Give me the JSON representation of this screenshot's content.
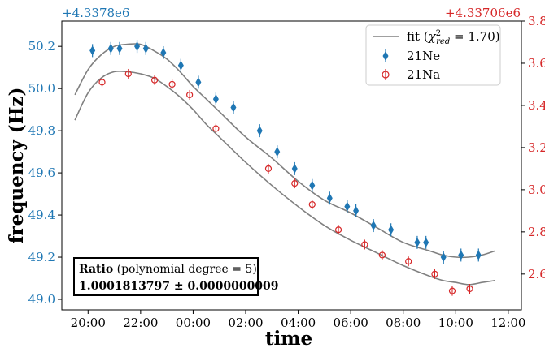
{
  "chart_data": {
    "type": "scatter",
    "xlabel": "time",
    "ylabel": "frequency (Hz)",
    "x_ticks": [
      "20:00",
      "22:00",
      "00:00",
      "02:00",
      "04:00",
      "06:00",
      "08:00",
      "10:00",
      "12:00"
    ],
    "x_range": [
      "19:00",
      "12:30"
    ],
    "left_axis": {
      "offset_label": "+4.3378e6",
      "range": [
        48.95,
        50.32
      ],
      "ticks": [
        "49.0",
        "49.2",
        "49.4",
        "49.6",
        "49.8",
        "50.0",
        "50.2"
      ],
      "color": "#1f77b4"
    },
    "right_axis": {
      "offset_label": "+4.33706e6",
      "range": [
        2.43,
        3.8
      ],
      "ticks": [
        "2.6",
        "2.8",
        "3.0",
        "3.2",
        "3.4",
        "3.6",
        "3.8"
      ],
      "color": "#d62728"
    },
    "legend": {
      "position": "top-right",
      "fit_label_prefix": "fit (",
      "fit_label_chi": "χ",
      "fit_label_sup": "2",
      "fit_label_sub": "red",
      "fit_label_value": " = 1.70)",
      "ne_label": "21Ne",
      "na_label": "21Na"
    },
    "series": [
      {
        "name": "21Ne",
        "axis": "left",
        "marker": "diamond",
        "color": "#1f77b4",
        "x": [
          "20:10",
          "20:52",
          "21:12",
          "21:52",
          "22:12",
          "22:52",
          "23:32",
          "00:12",
          "00:52",
          "01:32",
          "02:32",
          "03:12",
          "03:52",
          "04:32",
          "05:12",
          "05:52",
          "06:12",
          "06:52",
          "07:32",
          "08:32",
          "08:52",
          "09:32",
          "10:12",
          "10:52"
        ],
        "y": [
          50.18,
          50.19,
          50.19,
          50.2,
          50.19,
          50.17,
          50.11,
          50.03,
          49.95,
          49.91,
          49.8,
          49.7,
          49.62,
          49.54,
          49.48,
          49.44,
          49.42,
          49.35,
          49.33,
          49.27,
          49.27,
          49.2,
          49.21,
          49.21
        ]
      },
      {
        "name": "21Na",
        "axis": "right",
        "marker": "circle",
        "color": "#d62728",
        "x": [
          "20:32",
          "21:32",
          "22:32",
          "23:12",
          "23:52",
          "00:52",
          "02:52",
          "03:52",
          "04:32",
          "05:32",
          "06:32",
          "07:12",
          "08:12",
          "09:12",
          "09:52",
          "10:32"
        ],
        "y": [
          3.51,
          3.55,
          3.52,
          3.5,
          3.45,
          3.29,
          3.1,
          3.03,
          2.93,
          2.81,
          2.74,
          2.69,
          2.66,
          2.6,
          2.52,
          2.53
        ]
      },
      {
        "name": "fit",
        "axis": "left",
        "line": true,
        "color": "#808080",
        "x": [
          "19:30",
          "20:00",
          "20:30",
          "21:00",
          "21:30",
          "22:00",
          "22:30",
          "23:00",
          "23:30",
          "00:00",
          "00:30",
          "01:00",
          "02:00",
          "03:00",
          "04:00",
          "05:00",
          "06:00",
          "07:00",
          "08:00",
          "09:00",
          "09:30",
          "10:00",
          "10:30",
          "11:00",
          "11:30"
        ],
        "y": [
          49.97,
          50.09,
          50.16,
          50.2,
          50.21,
          50.21,
          50.18,
          50.14,
          50.08,
          50.01,
          49.95,
          49.89,
          49.77,
          49.67,
          49.56,
          49.47,
          49.41,
          49.34,
          49.27,
          49.23,
          49.21,
          49.2,
          49.2,
          49.21,
          49.23
        ]
      },
      {
        "axis": "right",
        "line": true,
        "color": "#808080",
        "x": [
          "19:30",
          "20:00",
          "20:30",
          "21:00",
          "21:30",
          "22:00",
          "22:30",
          "23:00",
          "23:30",
          "00:00",
          "00:30",
          "01:00",
          "02:00",
          "03:00",
          "04:00",
          "05:00",
          "06:00",
          "07:00",
          "08:00",
          "09:00",
          "09:30",
          "10:00",
          "10:30",
          "11:00",
          "11:30"
        ],
        "y": [
          3.33,
          3.46,
          3.53,
          3.56,
          3.56,
          3.55,
          3.53,
          3.49,
          3.44,
          3.38,
          3.31,
          3.25,
          3.13,
          3.02,
          2.92,
          2.83,
          2.76,
          2.7,
          2.64,
          2.59,
          2.57,
          2.56,
          2.55,
          2.56,
          2.57
        ]
      }
    ],
    "annotation": {
      "bold_label": "Ratio",
      "rest_label": " (polynomial degree = 5):",
      "value": "1.0001813797 ± 0.0000000009"
    }
  }
}
